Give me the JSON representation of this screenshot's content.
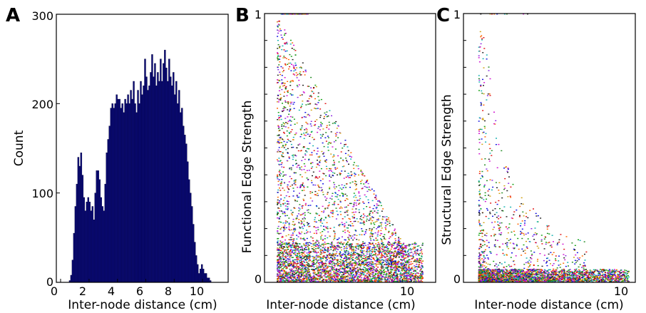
{
  "chart_data": [
    {
      "type": "bar",
      "panel": "A",
      "xlabel": "Inter-node distance (cm)",
      "ylabel": "Count",
      "xlim": [
        -0.3,
        11.8
      ],
      "ylim": [
        0,
        300
      ],
      "xticks": [
        0,
        2,
        4,
        6,
        8,
        10
      ],
      "yticks": [
        0,
        100,
        200,
        300
      ],
      "bin_start": 0.6,
      "bin_width": 0.1,
      "values": [
        2,
        8,
        25,
        55,
        85,
        110,
        140,
        130,
        145,
        120,
        95,
        80,
        90,
        95,
        90,
        80,
        85,
        70,
        100,
        125,
        125,
        115,
        95,
        85,
        80,
        110,
        145,
        160,
        175,
        195,
        200,
        195,
        200,
        210,
        205,
        205,
        195,
        200,
        190,
        205,
        200,
        210,
        200,
        215,
        205,
        225,
        200,
        190,
        215,
        200,
        225,
        210,
        220,
        250,
        230,
        215,
        220,
        235,
        255,
        230,
        245,
        220,
        235,
        225,
        250,
        225,
        245,
        260,
        240,
        225,
        250,
        230,
        220,
        235,
        210,
        225,
        200,
        215,
        190,
        195,
        175,
        165,
        155,
        135,
        115,
        100,
        85,
        65,
        45,
        30,
        20,
        10,
        15,
        20,
        15,
        10,
        10,
        5,
        5,
        2
      ]
    },
    {
      "type": "scatter",
      "panel": "B",
      "xlabel": "Inter-node distance (cm)",
      "ylabel": "Functional Edge Strength",
      "xlim": [
        -0.3,
        12.5
      ],
      "ylim": [
        0,
        1
      ],
      "xticks": [
        10
      ],
      "ytick_labels": [
        "0",
        "1"
      ],
      "distribution": {
        "x_range": [
          0.6,
          12.2
        ],
        "dense_band_y": [
          0,
          0.15
        ],
        "points_at_y_1": "x 0.8 to 3.0",
        "note": "density decreases with distance and with strength"
      }
    },
    {
      "type": "scatter",
      "panel": "C",
      "xlabel": "Inter-node distance (cm)",
      "ylabel": "Structural Edge Strength",
      "xlim": [
        -0.3,
        12.5
      ],
      "ylim": [
        0,
        1
      ],
      "xticks": [
        10
      ],
      "ytick_labels": [
        "0",
        "1"
      ],
      "distribution": {
        "x_range": [
          0.8,
          12.2
        ],
        "dense_band_y": [
          0,
          0.05
        ],
        "peak_x": 1.5,
        "note": "strong edges concentrated at short distances (1-3 cm)"
      }
    }
  ],
  "panels": {
    "a": {
      "letter": "A",
      "xlabel": "Inter-node distance (cm)",
      "ylabel": "Count",
      "xtick_labels": [
        "0",
        "2",
        "4",
        "6",
        "8",
        "10"
      ],
      "ytick_labels": [
        "0",
        "100",
        "200",
        "300"
      ]
    },
    "b": {
      "letter": "B",
      "xlabel": "Inter-node distance (cm)",
      "ylabel": "Functional Edge Strength",
      "xtick_labels": [
        "10"
      ],
      "ytick_labels": [
        "0",
        "1"
      ]
    },
    "c": {
      "letter": "C",
      "xlabel": "Inter-node distance (cm)",
      "ylabel": "Structural Edge Strength",
      "xtick_labels": [
        "10"
      ],
      "ytick_labels": [
        "0",
        "1"
      ]
    }
  },
  "colors": {
    "bar_fill": "#0a0a78",
    "bar_edge": "#000033",
    "scatter_palette": [
      "#e01010",
      "#10a010",
      "#1010e0",
      "#d010d0",
      "#10b0b0",
      "#d0a010",
      "#202020",
      "#ff6600",
      "#8a2be2",
      "#228b22"
    ]
  }
}
